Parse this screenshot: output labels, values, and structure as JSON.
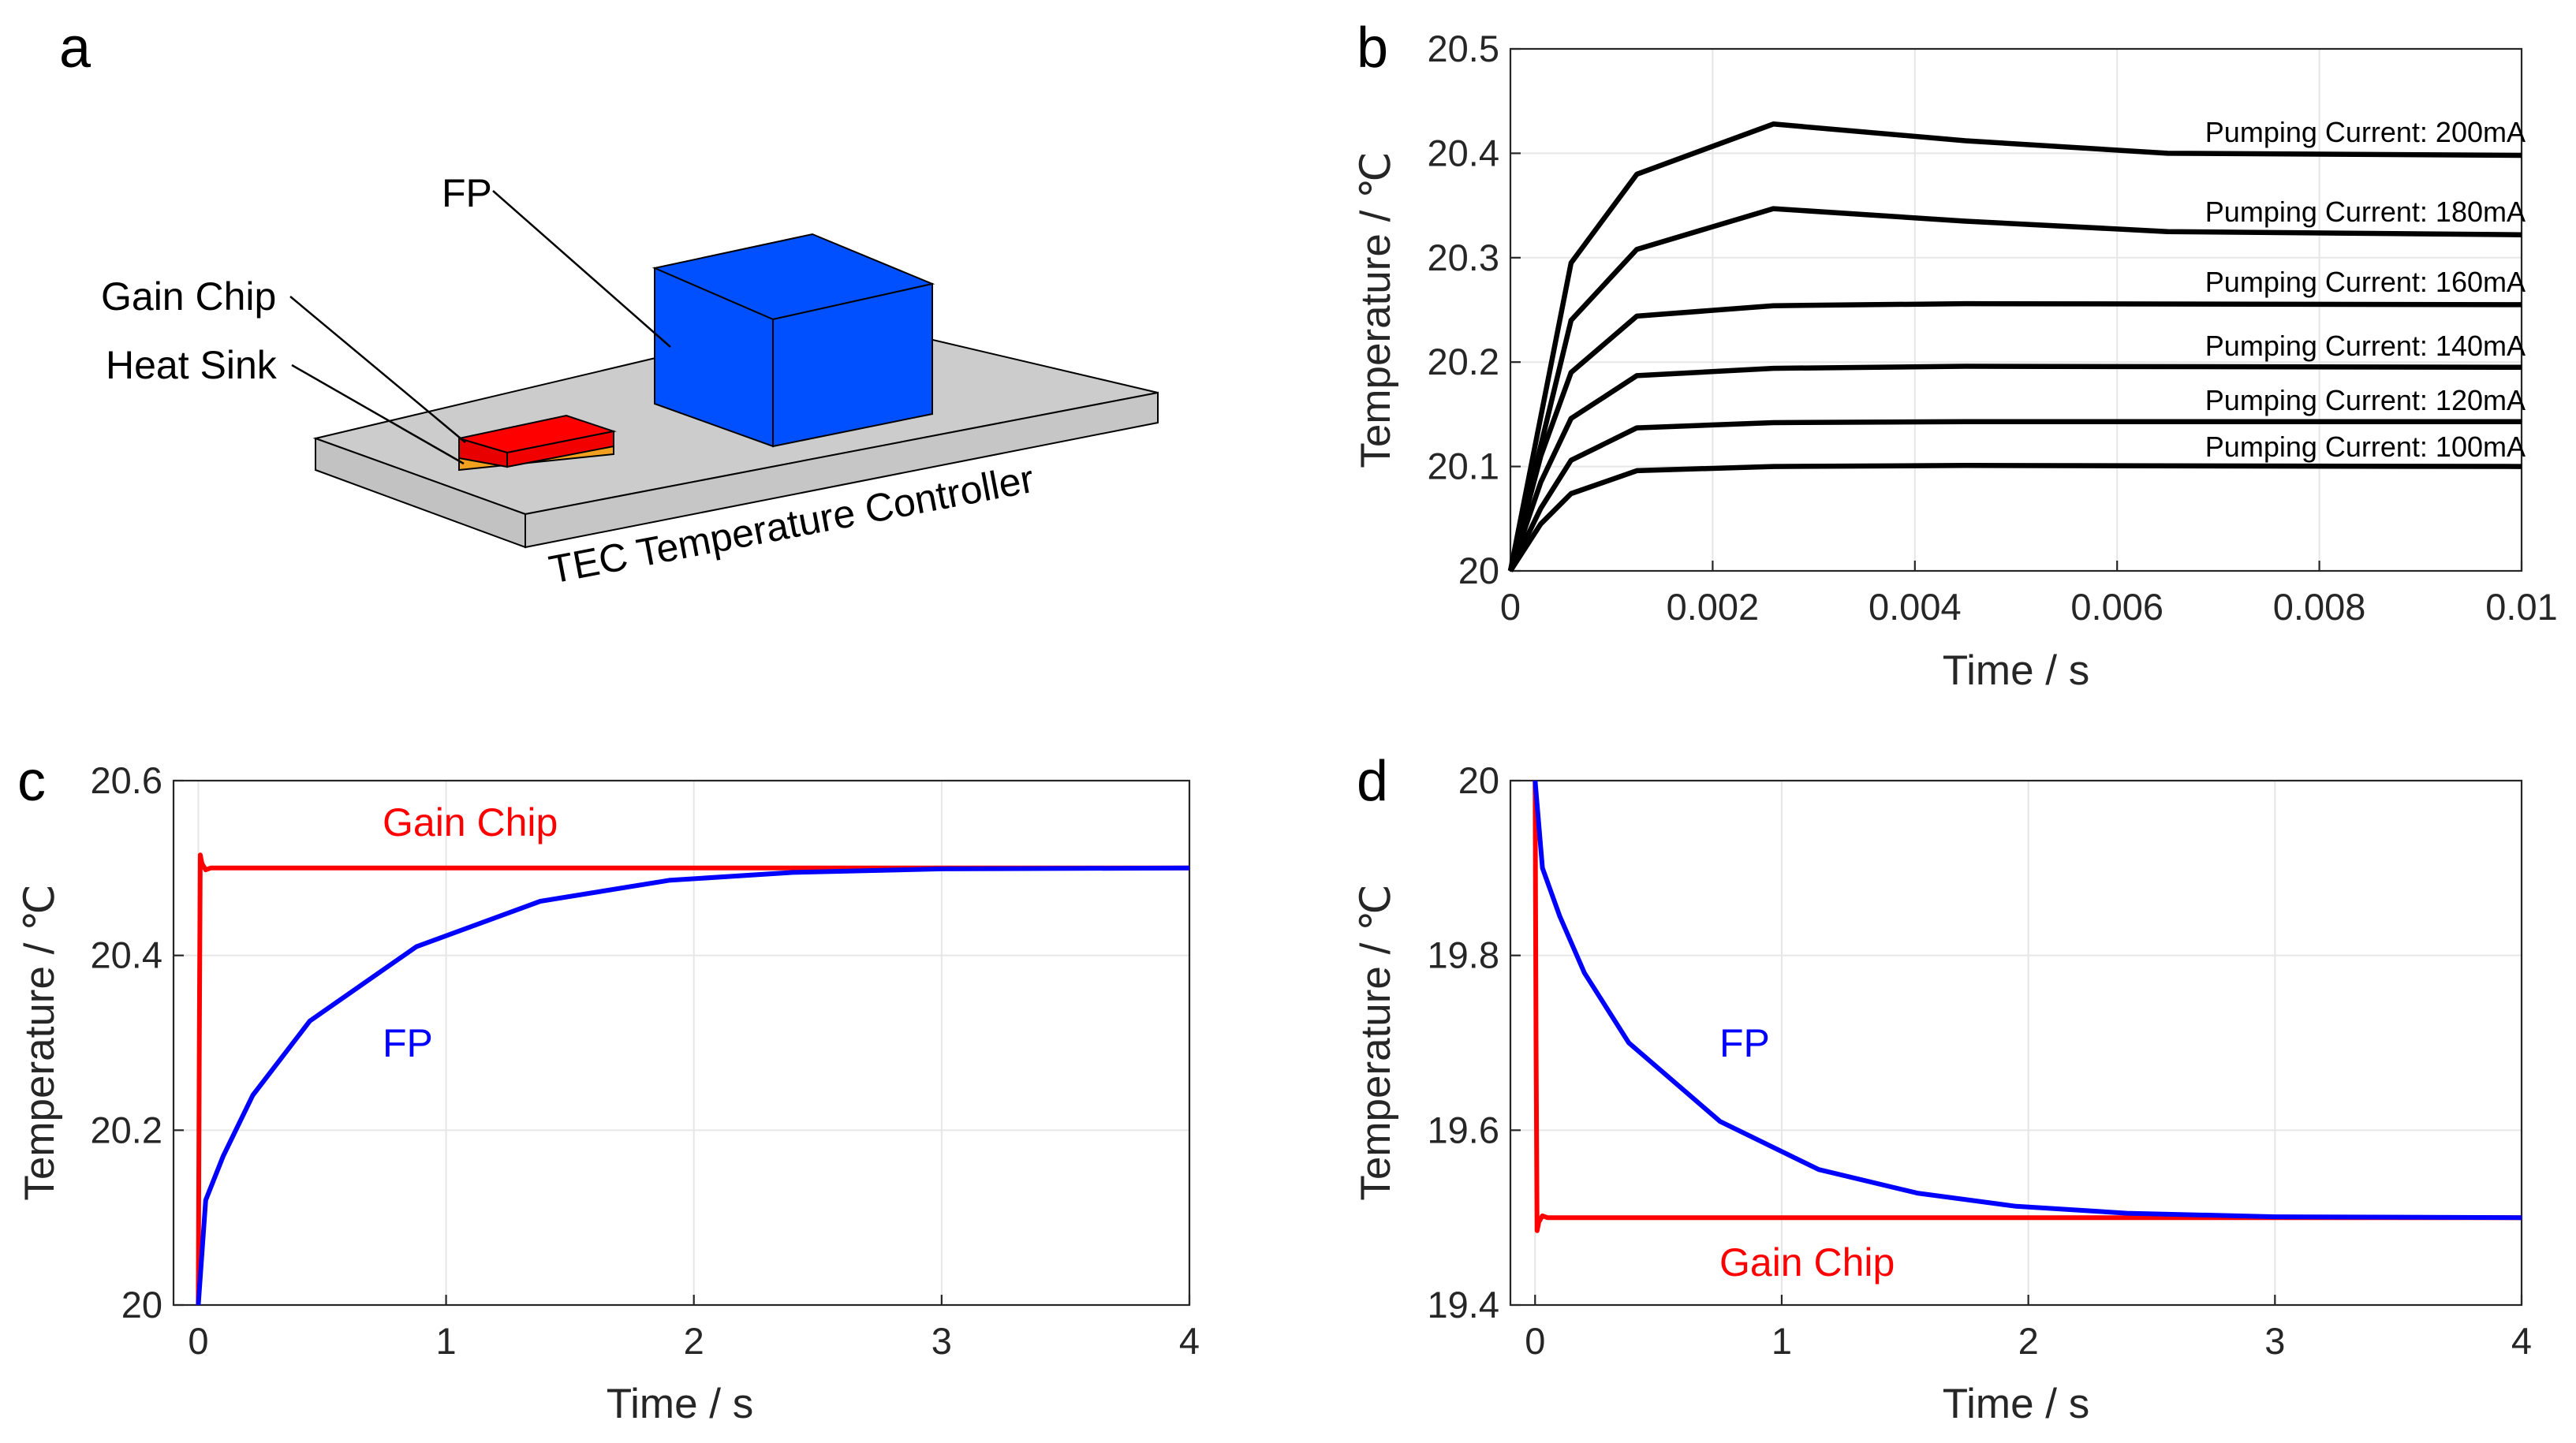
{
  "panels": {
    "a": {
      "letter": "a",
      "labels": {
        "fp": "FP",
        "gain_chip": "Gain Chip",
        "heat_sink": "Heat Sink",
        "tec": "TEC Temperature Controller"
      },
      "colors": {
        "fp": "#0050ff",
        "gain_chip": "#ff0000",
        "heat_sink": "#f2a020",
        "tec": "#cccccc"
      }
    },
    "b": {
      "letter": "b"
    },
    "c": {
      "letter": "c"
    },
    "d": {
      "letter": "d"
    }
  },
  "chart_data": [
    {
      "id": "b",
      "type": "line",
      "xlabel": "Time / s",
      "ylabel": "Temperature / ℃",
      "xlim": [
        0,
        0.01
      ],
      "ylim": [
        20,
        20.5
      ],
      "xticks": [
        0,
        0.002,
        0.004,
        0.006,
        0.008,
        0.01
      ],
      "xtick_labels": [
        "0",
        "0.002",
        "0.004",
        "0.006",
        "0.008",
        "0.01"
      ],
      "yticks": [
        20,
        20.1,
        20.2,
        20.3,
        20.4,
        20.5
      ],
      "ytick_labels": [
        "20",
        "20.1",
        "20.2",
        "20.3",
        "20.4",
        "20.5"
      ],
      "grid": true,
      "series": [
        {
          "name": "Pumping Current: 200mA",
          "color": "#000000",
          "x": [
            0,
            0.0006,
            0.00125,
            0.0026,
            0.0045,
            0.0065,
            0.01
          ],
          "y": [
            20,
            20.295,
            20.38,
            20.428,
            20.412,
            20.4,
            20.398
          ]
        },
        {
          "name": "Pumping Current: 180mA",
          "color": "#000000",
          "x": [
            0,
            0.0006,
            0.00125,
            0.0026,
            0.0045,
            0.0065,
            0.01
          ],
          "y": [
            20,
            20.24,
            20.308,
            20.347,
            20.335,
            20.325,
            20.322
          ]
        },
        {
          "name": "Pumping Current: 160mA",
          "color": "#000000",
          "x": [
            0,
            0.0003,
            0.0006,
            0.00125,
            0.0026,
            0.0045,
            0.01
          ],
          "y": [
            20,
            20.11,
            20.19,
            20.244,
            20.254,
            20.256,
            20.255
          ]
        },
        {
          "name": "Pumping Current: 140mA",
          "color": "#000000",
          "x": [
            0,
            0.0003,
            0.0006,
            0.00125,
            0.0026,
            0.0045,
            0.01
          ],
          "y": [
            20,
            20.085,
            20.146,
            20.187,
            20.194,
            20.196,
            20.195
          ]
        },
        {
          "name": "Pumping Current: 120mA",
          "color": "#000000",
          "x": [
            0,
            0.0003,
            0.0006,
            0.00125,
            0.0026,
            0.0045,
            0.01
          ],
          "y": [
            20,
            20.06,
            20.106,
            20.137,
            20.142,
            20.143,
            20.143
          ]
        },
        {
          "name": "Pumping Current: 100mA",
          "color": "#000000",
          "x": [
            0,
            0.0003,
            0.0006,
            0.00125,
            0.0026,
            0.0045,
            0.01
          ],
          "y": [
            20,
            20.045,
            20.074,
            20.096,
            20.1,
            20.101,
            20.1
          ]
        }
      ]
    },
    {
      "id": "c",
      "type": "line",
      "xlabel": "Time / s",
      "ylabel": "Temperature / ℃",
      "xlim": [
        -0.1,
        4
      ],
      "ylim": [
        20,
        20.6
      ],
      "xticks": [
        0,
        1,
        2,
        3,
        4
      ],
      "xtick_labels": [
        "0",
        "1",
        "2",
        "3",
        "4"
      ],
      "yticks": [
        20,
        20.2,
        20.4,
        20.6
      ],
      "ytick_labels": [
        "20",
        "20.2",
        "20.4",
        "20.6"
      ],
      "grid": true,
      "annotations": [
        {
          "text": "Gain Chip",
          "color": "#ff0000"
        },
        {
          "text": "FP",
          "color": "#0000ff"
        }
      ],
      "series": [
        {
          "name": "Gain Chip",
          "color": "#ff0000",
          "x": [
            0,
            0.004,
            0.008,
            0.015,
            0.03,
            0.05,
            0.1,
            0.5,
            1,
            2,
            3,
            4
          ],
          "y": [
            20,
            20.3,
            20.515,
            20.505,
            20.498,
            20.5,
            20.5,
            20.5,
            20.5,
            20.5,
            20.5,
            20.5
          ]
        },
        {
          "name": "FP",
          "color": "#0000ff",
          "x": [
            0,
            0.03,
            0.1,
            0.22,
            0.45,
            0.88,
            1.38,
            1.9,
            2.4,
            3,
            4
          ],
          "y": [
            20,
            20.12,
            20.17,
            20.24,
            20.325,
            20.41,
            20.462,
            20.486,
            20.495,
            20.499,
            20.5
          ]
        }
      ]
    },
    {
      "id": "d",
      "type": "line",
      "xlabel": "Time / s",
      "ylabel": "Temperature / ℃",
      "xlim": [
        -0.1,
        4
      ],
      "ylim": [
        19.4,
        20
      ],
      "xticks": [
        0,
        1,
        2,
        3,
        4
      ],
      "xtick_labels": [
        "0",
        "1",
        "2",
        "3",
        "4"
      ],
      "yticks": [
        19.4,
        19.6,
        19.8,
        20
      ],
      "ytick_labels": [
        "19.4",
        "19.6",
        "19.8",
        "20"
      ],
      "grid": true,
      "annotations": [
        {
          "text": "FP",
          "color": "#0000ff"
        },
        {
          "text": "Gain Chip",
          "color": "#ff0000"
        }
      ],
      "series": [
        {
          "name": "Gain Chip",
          "color": "#ff0000",
          "x": [
            0,
            0.004,
            0.008,
            0.015,
            0.03,
            0.05,
            0.1,
            0.5,
            1,
            2,
            3,
            4
          ],
          "y": [
            20,
            19.7,
            19.485,
            19.495,
            19.502,
            19.5,
            19.5,
            19.5,
            19.5,
            19.5,
            19.5,
            19.5
          ]
        },
        {
          "name": "FP",
          "color": "#0000ff",
          "x": [
            0,
            0.03,
            0.1,
            0.2,
            0.38,
            0.75,
            1.15,
            1.55,
            1.95,
            2.4,
            3,
            4
          ],
          "y": [
            20,
            19.9,
            19.845,
            19.78,
            19.7,
            19.61,
            19.555,
            19.528,
            19.513,
            19.505,
            19.501,
            19.5
          ]
        }
      ]
    }
  ]
}
